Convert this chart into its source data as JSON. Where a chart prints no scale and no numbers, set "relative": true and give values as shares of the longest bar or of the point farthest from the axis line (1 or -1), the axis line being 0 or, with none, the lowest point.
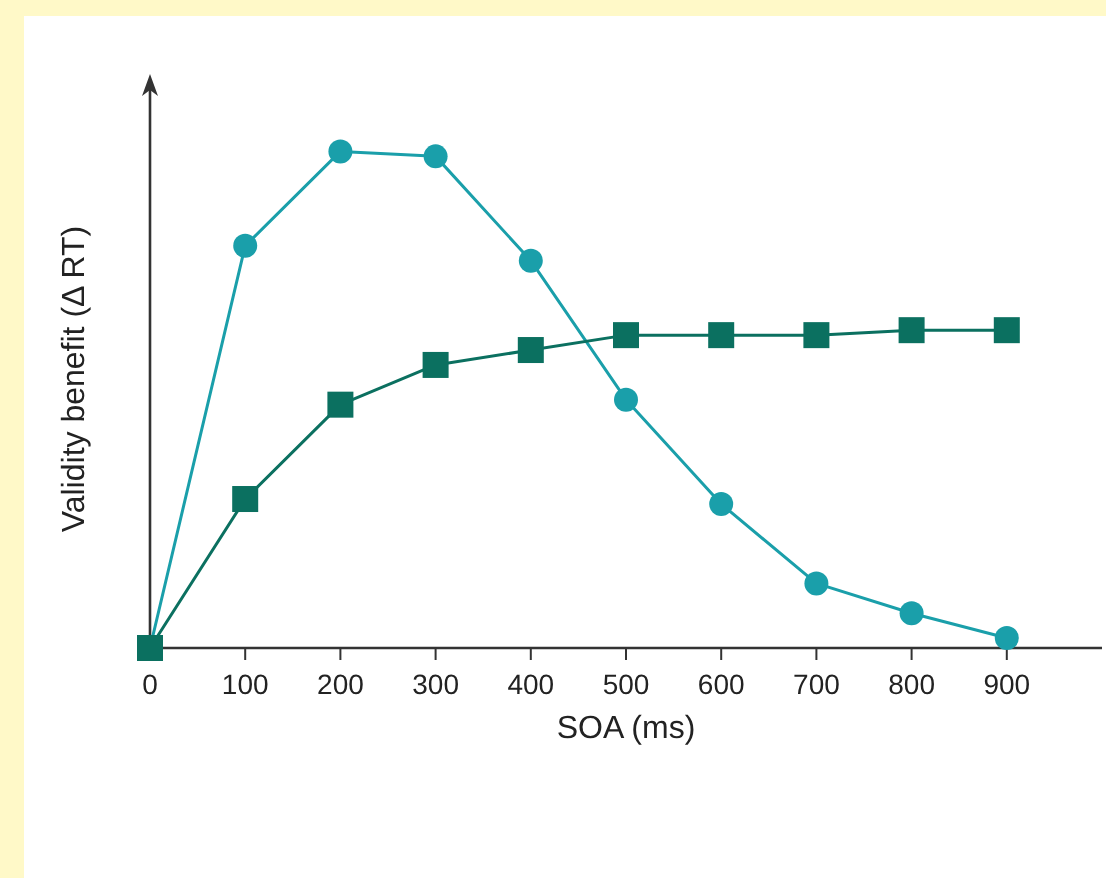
{
  "chart_data": {
    "type": "line",
    "xlabel": "SOA (ms)",
    "ylabel": "Validity benefit (Δ RT)",
    "relative": true,
    "x": [
      0,
      100,
      200,
      300,
      400,
      500,
      600,
      700,
      800,
      900
    ],
    "xlim": [
      0,
      1000
    ],
    "xticks": [
      0,
      100,
      200,
      300,
      400,
      500,
      600,
      700,
      800,
      900
    ],
    "grid": false,
    "line_style": "solid",
    "series": [
      {
        "color": "#1a9faa",
        "marker": "circle",
        "values": [
          0,
          0.81,
          1,
          0.99,
          0.78,
          0.5,
          0.29,
          0.13,
          0.07,
          0.02
        ]
      },
      {
        "color": "#0b7060",
        "marker": "square",
        "values": [
          0,
          0.3,
          0.49,
          0.57,
          0.6,
          0.63,
          0.63,
          0.63,
          0.64,
          0.64
        ]
      }
    ]
  }
}
